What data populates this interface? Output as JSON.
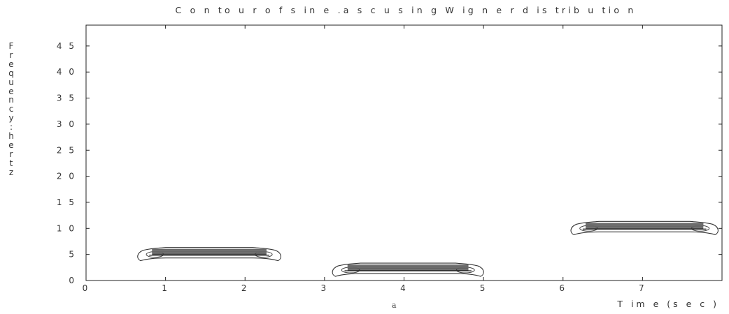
{
  "chart_data": {
    "type": "contour",
    "title": "C o n to u r  o f  s in e .a s c  u s in g   W ig n e r  d is trib u tio n",
    "xlabel": "T im e  (s e c )",
    "ylabel": "F r e q u e n c y : h e r t z",
    "sublabel": "a",
    "xlim": [
      0,
      8
    ],
    "ylim": [
      0,
      49
    ],
    "grid": false,
    "x_ticks": [
      {
        "value": 0,
        "label": "0"
      },
      {
        "value": 1,
        "label": "1"
      },
      {
        "value": 2,
        "label": "2"
      },
      {
        "value": 3,
        "label": "3"
      },
      {
        "value": 4,
        "label": "4"
      },
      {
        "value": 5,
        "label": "5"
      },
      {
        "value": 6,
        "label": "6"
      },
      {
        "value": 7,
        "label": "7"
      }
    ],
    "y_ticks": [
      {
        "value": 0,
        "label": "0"
      },
      {
        "value": 5,
        "label": "5"
      },
      {
        "value": 10,
        "label": "1 0"
      },
      {
        "value": 15,
        "label": "1 5"
      },
      {
        "value": 20,
        "label": "2 0"
      },
      {
        "value": 25,
        "label": "2 5"
      },
      {
        "value": 30,
        "label": "3 0"
      },
      {
        "value": 35,
        "label": "3 5"
      },
      {
        "value": 40,
        "label": "4 0"
      },
      {
        "value": 45,
        "label": "4 5"
      }
    ],
    "components": [
      {
        "t_start": 0.65,
        "t_end": 2.45,
        "frequency": 5
      },
      {
        "t_start": 3.1,
        "t_end": 5.0,
        "frequency": 2
      },
      {
        "t_start": 6.1,
        "t_end": 7.95,
        "frequency": 10
      }
    ]
  }
}
